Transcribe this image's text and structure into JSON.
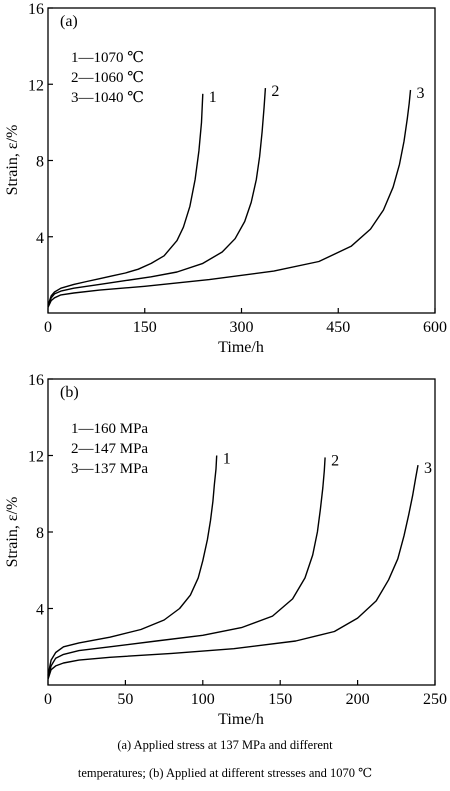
{
  "caption": {
    "line1": "(a) Applied stress at 137 MPa and different",
    "line2": "temperatures; (b) Applied at different stresses and 1070 ℃"
  },
  "chart_data": [
    {
      "type": "line",
      "panel_label": "(a)",
      "xlabel": "Time/h",
      "ylabel": "Strain, ε/%",
      "xlim": [
        0,
        600
      ],
      "ylim": [
        0,
        16
      ],
      "xticks": [
        0,
        150,
        300,
        450,
        600
      ],
      "yticks": [
        4,
        8,
        12,
        16
      ],
      "grid": false,
      "legend_position": "top-left",
      "legend": [
        "1—1070 ℃",
        "2—1060 ℃",
        "3—1040 ℃"
      ],
      "series": [
        {
          "name": "1",
          "x": [
            0,
            5,
            10,
            20,
            40,
            60,
            80,
            100,
            120,
            140,
            160,
            180,
            200,
            210,
            220,
            228,
            234,
            238,
            240
          ],
          "y": [
            0.4,
            0.9,
            1.1,
            1.3,
            1.5,
            1.65,
            1.8,
            1.95,
            2.1,
            2.3,
            2.6,
            3.0,
            3.8,
            4.5,
            5.6,
            7.0,
            8.5,
            10.0,
            11.5
          ]
        },
        {
          "name": "2",
          "x": [
            0,
            5,
            10,
            20,
            40,
            80,
            120,
            160,
            200,
            240,
            270,
            290,
            305,
            315,
            323,
            328,
            332,
            335,
            337
          ],
          "y": [
            0.3,
            0.8,
            1.0,
            1.15,
            1.3,
            1.5,
            1.7,
            1.9,
            2.15,
            2.6,
            3.2,
            3.9,
            4.8,
            5.8,
            7.0,
            8.2,
            9.5,
            10.8,
            11.8
          ]
        },
        {
          "name": "3",
          "x": [
            0,
            5,
            10,
            20,
            40,
            80,
            150,
            250,
            350,
            420,
            470,
            500,
            520,
            535,
            545,
            552,
            557,
            560,
            562
          ],
          "y": [
            0.3,
            0.65,
            0.8,
            0.95,
            1.05,
            1.2,
            1.4,
            1.75,
            2.2,
            2.7,
            3.5,
            4.4,
            5.4,
            6.6,
            7.8,
            9.0,
            10.2,
            11.0,
            11.7
          ]
        }
      ]
    },
    {
      "type": "line",
      "panel_label": "(b)",
      "xlabel": "Time/h",
      "ylabel": "Strain, ε/%",
      "xlim": [
        0,
        250
      ],
      "ylim": [
        0,
        16
      ],
      "xticks": [
        0,
        50,
        100,
        150,
        200,
        250
      ],
      "yticks": [
        4,
        8,
        12,
        16
      ],
      "grid": false,
      "legend_position": "top-left",
      "legend": [
        "1—160 MPa",
        "2—147 MPa",
        "3—137 MPa"
      ],
      "series": [
        {
          "name": "1",
          "x": [
            0,
            2,
            5,
            10,
            20,
            40,
            60,
            75,
            85,
            92,
            97,
            100,
            103,
            105,
            106.5,
            107.5,
            108.5,
            109
          ],
          "y": [
            0.5,
            1.3,
            1.7,
            2.0,
            2.2,
            2.5,
            2.9,
            3.4,
            4.0,
            4.7,
            5.6,
            6.5,
            7.6,
            8.6,
            9.6,
            10.5,
            11.3,
            12.0
          ]
        },
        {
          "name": "2",
          "x": [
            0,
            2,
            5,
            10,
            20,
            40,
            70,
            100,
            125,
            145,
            158,
            166,
            171,
            174,
            176,
            177.5,
            178.5,
            179
          ],
          "y": [
            0.4,
            1.0,
            1.4,
            1.6,
            1.8,
            2.0,
            2.3,
            2.6,
            3.0,
            3.6,
            4.5,
            5.6,
            6.8,
            8.0,
            9.2,
            10.3,
            11.2,
            11.9
          ]
        },
        {
          "name": "3",
          "x": [
            0,
            2,
            5,
            10,
            20,
            40,
            80,
            120,
            160,
            185,
            200,
            212,
            220,
            226,
            230,
            233,
            235.5,
            237.5,
            239
          ],
          "y": [
            0.3,
            0.8,
            1.0,
            1.15,
            1.3,
            1.45,
            1.65,
            1.9,
            2.3,
            2.8,
            3.5,
            4.4,
            5.5,
            6.6,
            7.8,
            8.9,
            9.9,
            10.8,
            11.5
          ]
        }
      ]
    }
  ]
}
